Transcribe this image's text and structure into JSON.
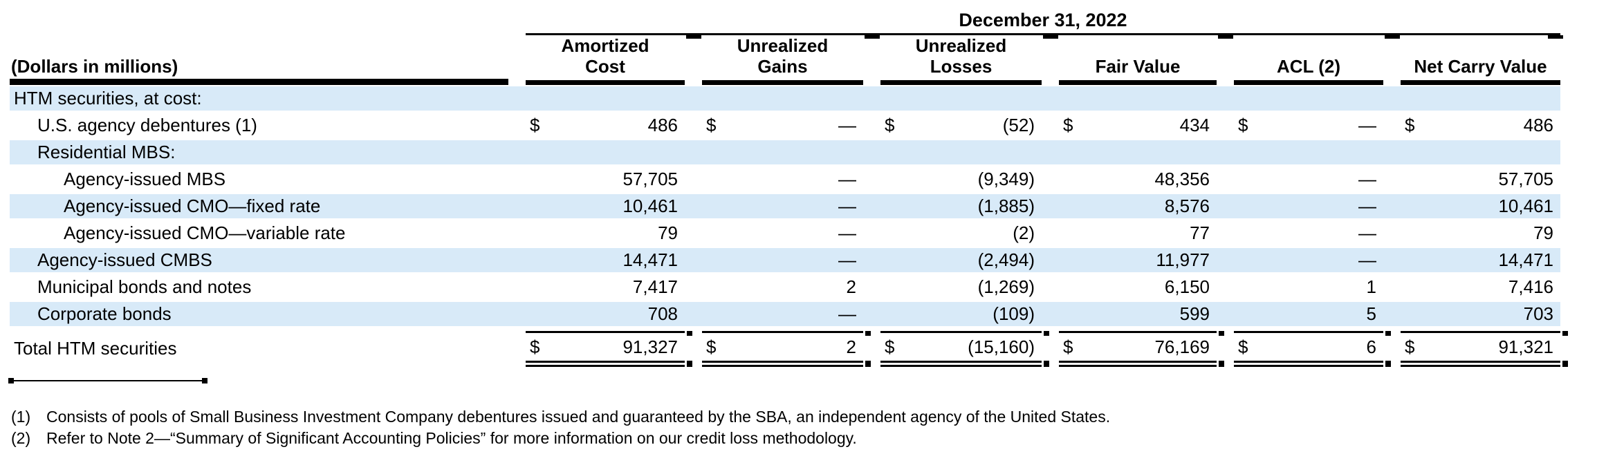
{
  "table": {
    "period_header": "December 31, 2022",
    "units_label": "(Dollars in millions)",
    "columns": [
      "Amortized\nCost",
      "Unrealized\nGains",
      "Unrealized\nLosses",
      "Fair Value",
      "ACL (2)",
      "Net Carry Value"
    ],
    "currency_symbol": "$",
    "rows": [
      {
        "label": "HTM securities, at cost:",
        "indent": 0,
        "shaded": true,
        "kind": "section",
        "dollar": false,
        "values": [
          "",
          "",
          "",
          "",
          "",
          ""
        ]
      },
      {
        "label": "U.S. agency debentures (1)",
        "indent": 1,
        "shaded": false,
        "kind": "data",
        "dollar": true,
        "values": [
          "486",
          "—",
          "(52)",
          "434",
          "—",
          "486"
        ]
      },
      {
        "label": "Residential MBS:",
        "indent": 1,
        "shaded": true,
        "kind": "section",
        "dollar": false,
        "values": [
          "",
          "",
          "",
          "",
          "",
          ""
        ]
      },
      {
        "label": "Agency-issued MBS",
        "indent": 2,
        "shaded": false,
        "kind": "data",
        "dollar": false,
        "values": [
          "57,705",
          "—",
          "(9,349)",
          "48,356",
          "—",
          "57,705"
        ]
      },
      {
        "label": "Agency-issued CMO—fixed rate",
        "indent": 2,
        "shaded": true,
        "kind": "data",
        "dollar": false,
        "values": [
          "10,461",
          "—",
          "(1,885)",
          "8,576",
          "—",
          "10,461"
        ]
      },
      {
        "label": "Agency-issued CMO—variable rate",
        "indent": 2,
        "shaded": false,
        "kind": "data",
        "dollar": false,
        "values": [
          "79",
          "—",
          "(2)",
          "77",
          "—",
          "79"
        ]
      },
      {
        "label": "Agency-issued CMBS",
        "indent": 1,
        "shaded": true,
        "kind": "data",
        "dollar": false,
        "values": [
          "14,471",
          "—",
          "(2,494)",
          "11,977",
          "—",
          "14,471"
        ]
      },
      {
        "label": "Municipal bonds and notes",
        "indent": 1,
        "shaded": false,
        "kind": "data",
        "dollar": false,
        "values": [
          "7,417",
          "2",
          "(1,269)",
          "6,150",
          "1",
          "7,416"
        ]
      },
      {
        "label": "Corporate bonds",
        "indent": 1,
        "shaded": true,
        "kind": "data",
        "dollar": false,
        "values": [
          "708",
          "—",
          "(109)",
          "599",
          "5",
          "703"
        ]
      },
      {
        "label": "Total HTM securities",
        "indent": 0,
        "shaded": false,
        "kind": "total",
        "dollar": true,
        "values": [
          "91,327",
          "2",
          "(15,160)",
          "76,169",
          "6",
          "91,321"
        ]
      }
    ],
    "footnotes": [
      {
        "marker": "(1)",
        "text": "Consists of pools of Small Business Investment Company debentures issued and guaranteed by the SBA, an independent agency of the United States."
      },
      {
        "marker": "(2)",
        "text": "Refer to Note 2—“Summary of Significant Accounting Policies” for more information on our credit loss methodology."
      }
    ],
    "colors": {
      "row_shade": "#d8eaf8",
      "rule": "#000000",
      "text": "#000000"
    }
  }
}
